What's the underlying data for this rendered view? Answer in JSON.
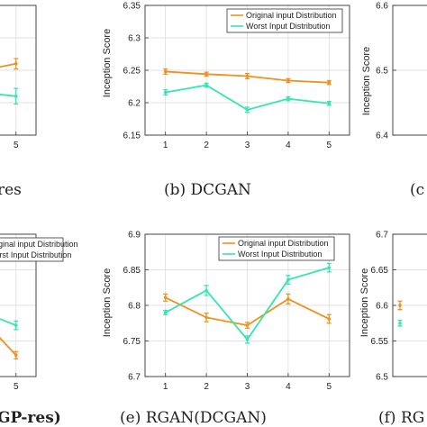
{
  "colors": {
    "original": "#f0901e",
    "worst": "#35e6b2",
    "axis": "#333333",
    "grid": "#d9d9d9"
  },
  "legend": {
    "original": "Original input Distribution",
    "worst": "Worst Input Distribution"
  },
  "chart_data": [
    {
      "id": "a",
      "type": "line",
      "caption": "res",
      "x": [
        4,
        5
      ],
      "xticks": [
        "",
        "5"
      ],
      "series": [
        {
          "name": "Original input Distribution",
          "values": [
            6.245,
            6.26
          ],
          "err": [
            0.004,
            0.008
          ]
        },
        {
          "name": "Worst Input Distribution",
          "values": [
            6.218,
            6.21
          ],
          "err": [
            0.004,
            0.012
          ]
        }
      ]
    },
    {
      "id": "b",
      "type": "line",
      "caption": "(b)  DCGAN",
      "ylabel": "Inception Score",
      "x": [
        1,
        2,
        3,
        4,
        5
      ],
      "xticks": [
        "1",
        "2",
        "3",
        "4",
        "5"
      ],
      "ylim": [
        6.15,
        6.35
      ],
      "yticks": [
        "6.15",
        "6.2",
        "6.25",
        "6.3",
        "6.35"
      ],
      "grid": true,
      "legend": "top-right",
      "series": [
        {
          "name": "Original input Distribution",
          "values": [
            6.248,
            6.244,
            6.241,
            6.234,
            6.231
          ],
          "err": [
            0.004,
            0.003,
            0.004,
            0.003,
            0.003
          ]
        },
        {
          "name": "Worst Input Distribution",
          "values": [
            6.216,
            6.227,
            6.189,
            6.206,
            6.199
          ],
          "err": [
            0.004,
            0.003,
            0.004,
            0.003,
            0.003
          ]
        }
      ]
    },
    {
      "id": "c",
      "type": "line",
      "caption": "(c",
      "ylabel": "Inception Score",
      "ylim": [
        6.4,
        6.6
      ],
      "yticks": [
        "6.4",
        "6.5",
        "6.6"
      ],
      "series": []
    },
    {
      "id": "d",
      "type": "line",
      "caption": "GP-res)",
      "x": [
        4,
        5
      ],
      "xticks": [
        "",
        "5"
      ],
      "series": [
        {
          "name": "Original input Distribution",
          "values": [
            6.805,
            6.73
          ],
          "err": [
            0.003,
            0.005
          ]
        },
        {
          "name": "Worst Input Distribution",
          "values": [
            6.8,
            6.772
          ],
          "err": [
            0.004,
            0.006
          ]
        }
      ]
    },
    {
      "id": "e",
      "type": "line",
      "caption": "(e)  RGAN(DCGAN)",
      "ylabel": "Inception Score",
      "x": [
        1,
        2,
        3,
        4,
        5
      ],
      "xticks": [
        "1",
        "2",
        "3",
        "4",
        "5"
      ],
      "ylim": [
        6.7,
        6.9
      ],
      "yticks": [
        "6.7",
        "6.75",
        "6.8",
        "6.85",
        "6.9"
      ],
      "grid": true,
      "legend": "top-right",
      "series": [
        {
          "name": "Original input Distribution",
          "values": [
            6.811,
            6.783,
            6.772,
            6.809,
            6.781
          ],
          "err": [
            0.005,
            0.006,
            0.004,
            0.007,
            0.006
          ]
        },
        {
          "name": "Worst Input Distribution",
          "values": [
            6.79,
            6.821,
            6.752,
            6.836,
            6.853
          ],
          "err": [
            0.003,
            0.007,
            0.005,
            0.006,
            0.006
          ]
        }
      ]
    },
    {
      "id": "f",
      "type": "line",
      "caption": "(f)  RG",
      "ylabel": "Inception Score",
      "ylim": [
        6.5,
        6.7
      ],
      "yticks": [
        "6.5",
        "6.55",
        "6.6",
        "6.65",
        "6.7"
      ],
      "series": [
        {
          "name": "Original input Distribution",
          "values": [
            6.6
          ],
          "err": [
            0.006
          ]
        },
        {
          "name": "Worst Input Distribution",
          "values": [
            6.575
          ],
          "err": [
            0.004
          ]
        }
      ]
    }
  ]
}
